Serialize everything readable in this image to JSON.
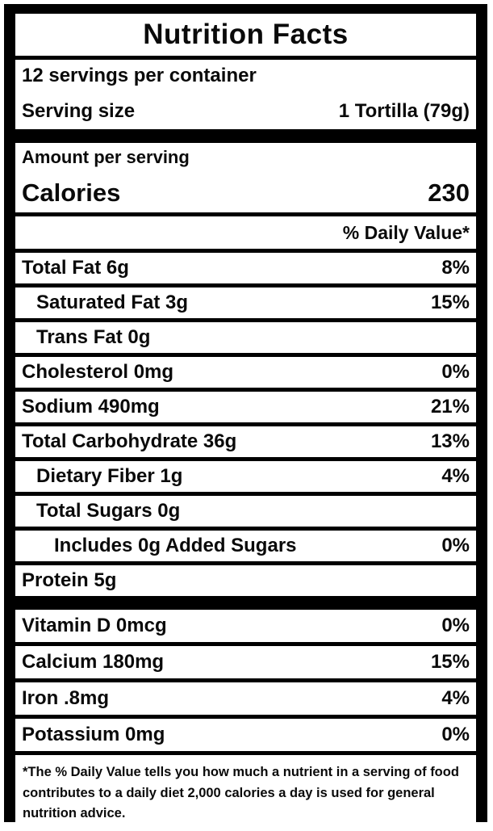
{
  "label": {
    "title": "Nutrition Facts",
    "servings_per_container": "12 servings per container",
    "serving_size": {
      "label": "Serving size",
      "value": "1 Tortilla (79g)"
    },
    "amount_per_serving": "Amount per serving",
    "calories": {
      "label": "Calories",
      "value": "230"
    },
    "daily_value_header": "% Daily Value*",
    "rows": [
      {
        "name": "Total Fat 6g",
        "dv": "8%",
        "indent": 0
      },
      {
        "name": "Saturated Fat 3g",
        "dv": "15%",
        "indent": 1
      },
      {
        "name": "Trans Fat 0g",
        "dv": "",
        "indent": 1
      },
      {
        "name": "Cholesterol 0mg",
        "dv": "0%",
        "indent": 0
      },
      {
        "name": "Sodium 490mg",
        "dv": "21%",
        "indent": 0
      },
      {
        "name": "Total Carbohydrate 36g",
        "dv": "13%",
        "indent": 0
      },
      {
        "name": "Dietary Fiber 1g",
        "dv": "4%",
        "indent": 1
      },
      {
        "name": "Total Sugars 0g",
        "dv": "",
        "indent": 1
      },
      {
        "name": "Includes 0g Added Sugars",
        "dv": "0%",
        "indent": 2
      },
      {
        "name": "Protein 5g",
        "dv": "",
        "indent": 0
      }
    ],
    "micronutrients": [
      {
        "name": "Vitamin D 0mcg",
        "dv": "0%"
      },
      {
        "name": "Calcium 180mg",
        "dv": "15%"
      },
      {
        "name": "Iron .8mg",
        "dv": "4%"
      },
      {
        "name": "Potassium 0mg",
        "dv": "0%"
      }
    ],
    "footnote": "*The % Daily Value tells you how much a nutrient in a serving of food contributes to a daily diet 2,000 calories a day is used for general nutrition advice.",
    "colors": {
      "frame": "#000000",
      "background": "#ffffff",
      "text": "#0a0a0a"
    }
  }
}
